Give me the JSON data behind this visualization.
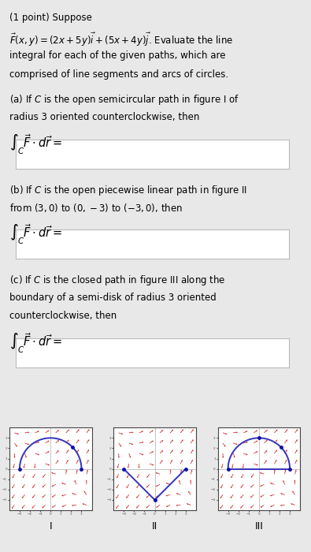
{
  "background_color": "#e8e8e8",
  "text_color": "#000000",
  "fig_labels": [
    "I",
    "II",
    "III"
  ],
  "vector_field_color": "#cc0000",
  "path_color": "#3333bb",
  "dot_color": "#1111aa",
  "box_bg": "#ffffff",
  "box_edge": "#bbbbbb",
  "subfig_bg": "#ffffff",
  "subfig_edge": "#444444",
  "font_size": 8.5,
  "integral_font_size": 10.5
}
